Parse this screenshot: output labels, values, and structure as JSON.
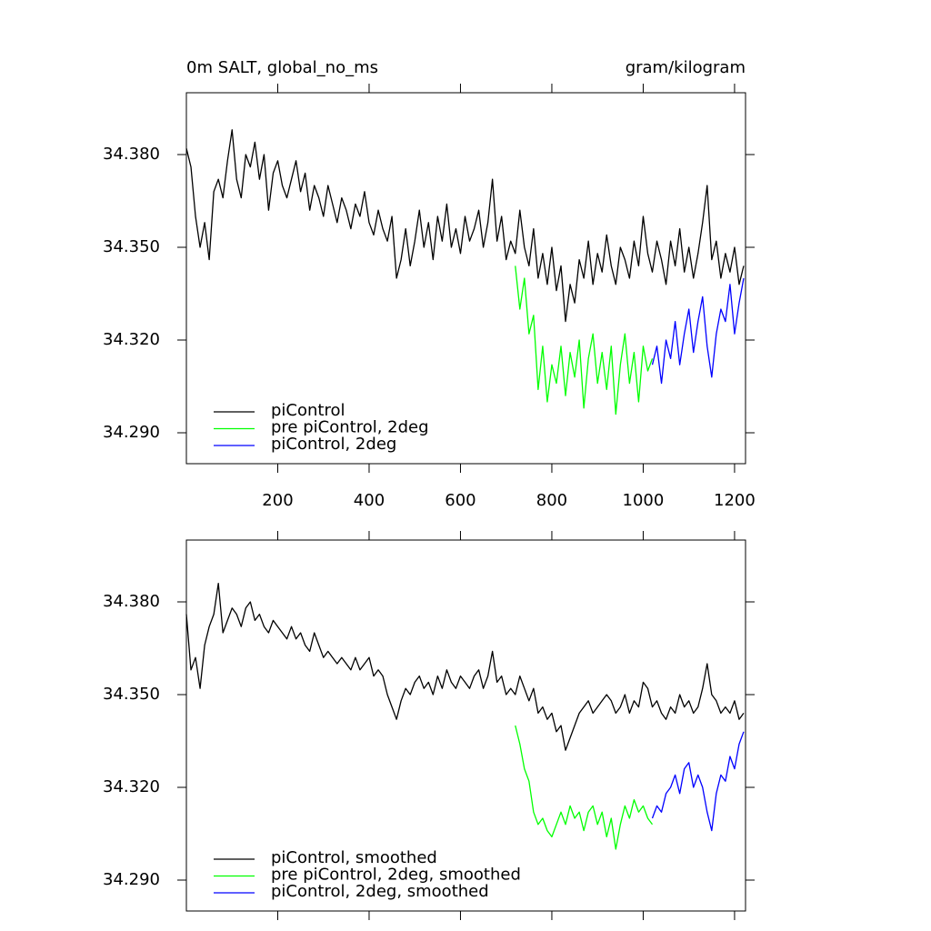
{
  "chart_data": [
    {
      "type": "line",
      "title": "0m SALT, global_no_ms",
      "units": "gram/kilogram",
      "x": [
        0,
        10,
        20,
        30,
        40,
        50,
        60,
        70,
        80,
        90,
        100,
        110,
        120,
        130,
        140,
        150,
        160,
        170,
        180,
        190,
        200,
        210,
        220,
        230,
        240,
        250,
        260,
        270,
        280,
        290,
        300,
        310,
        320,
        330,
        340,
        350,
        360,
        370,
        380,
        390,
        400,
        410,
        420,
        430,
        440,
        450,
        460,
        470,
        480,
        490,
        500,
        510,
        520,
        530,
        540,
        550,
        560,
        570,
        580,
        590,
        600,
        610,
        620,
        630,
        640,
        650,
        660,
        670,
        680,
        690,
        700,
        710,
        720,
        730,
        740,
        750,
        760,
        770,
        780,
        790,
        800,
        810,
        820,
        830,
        840,
        850,
        860,
        870,
        880,
        890,
        900,
        910,
        920,
        930,
        940,
        950,
        960,
        970,
        980,
        990,
        1000,
        1010,
        1020,
        1030,
        1040,
        1050,
        1060,
        1070,
        1080,
        1090,
        1100,
        1110,
        1120,
        1130,
        1140,
        1150,
        1160,
        1170,
        1180,
        1190,
        1200,
        1210,
        1220
      ],
      "series": [
        {
          "name": "piControl",
          "color": "#000000",
          "values": [
            34.382,
            34.376,
            34.36,
            34.35,
            34.358,
            34.346,
            34.368,
            34.372,
            34.366,
            34.378,
            34.388,
            34.372,
            34.366,
            34.38,
            34.376,
            34.384,
            34.372,
            34.38,
            34.362,
            34.374,
            34.378,
            34.37,
            34.366,
            34.372,
            34.378,
            34.368,
            34.374,
            34.362,
            34.37,
            34.366,
            34.36,
            34.37,
            34.364,
            34.358,
            34.366,
            34.362,
            34.356,
            34.364,
            34.36,
            34.368,
            34.358,
            34.354,
            34.362,
            34.356,
            34.352,
            34.36,
            34.34,
            34.346,
            34.356,
            34.344,
            34.352,
            34.362,
            34.35,
            34.358,
            34.346,
            34.36,
            34.352,
            34.364,
            34.35,
            34.356,
            34.348,
            34.36,
            34.352,
            34.356,
            34.362,
            34.35,
            34.358,
            34.372,
            34.352,
            34.36,
            34.346,
            34.352,
            34.348,
            34.362,
            34.35,
            34.344,
            34.356,
            34.34,
            34.348,
            34.338,
            34.35,
            34.336,
            34.344,
            34.326,
            34.338,
            34.332,
            34.346,
            34.34,
            34.352,
            34.338,
            34.348,
            34.342,
            34.354,
            34.344,
            34.338,
            34.35,
            34.346,
            34.34,
            34.352,
            34.344,
            34.36,
            34.348,
            34.342,
            34.352,
            34.346,
            34.338,
            34.352,
            34.344,
            34.356,
            34.342,
            34.35,
            34.34,
            34.348,
            34.358,
            34.37,
            34.346,
            34.352,
            34.34,
            34.348,
            34.342,
            34.35,
            34.338,
            34.344
          ]
        },
        {
          "name": "pre piControl, 2deg",
          "color": "#00ff00",
          "values": [
            null,
            null,
            null,
            null,
            null,
            null,
            null,
            null,
            null,
            null,
            null,
            null,
            null,
            null,
            null,
            null,
            null,
            null,
            null,
            null,
            null,
            null,
            null,
            null,
            null,
            null,
            null,
            null,
            null,
            null,
            null,
            null,
            null,
            null,
            null,
            null,
            null,
            null,
            null,
            null,
            null,
            null,
            null,
            null,
            null,
            null,
            null,
            null,
            null,
            null,
            null,
            null,
            null,
            null,
            null,
            null,
            null,
            null,
            null,
            null,
            null,
            null,
            null,
            null,
            null,
            null,
            null,
            null,
            null,
            null,
            null,
            null,
            34.344,
            34.33,
            34.34,
            34.322,
            34.328,
            34.304,
            34.318,
            34.3,
            34.312,
            34.306,
            34.318,
            34.302,
            34.316,
            34.308,
            34.32,
            34.298,
            34.314,
            34.322,
            34.306,
            34.316,
            34.304,
            34.318,
            34.296,
            34.312,
            34.322,
            34.306,
            34.316,
            34.3,
            34.318,
            34.31,
            34.314,
            null,
            null,
            null,
            null,
            null,
            null,
            null,
            null,
            null,
            null,
            null,
            null,
            null,
            null,
            null,
            null,
            null,
            null,
            null,
            null
          ]
        },
        {
          "name": "piControl, 2deg",
          "color": "#0000ff",
          "values": [
            null,
            null,
            null,
            null,
            null,
            null,
            null,
            null,
            null,
            null,
            null,
            null,
            null,
            null,
            null,
            null,
            null,
            null,
            null,
            null,
            null,
            null,
            null,
            null,
            null,
            null,
            null,
            null,
            null,
            null,
            null,
            null,
            null,
            null,
            null,
            null,
            null,
            null,
            null,
            null,
            null,
            null,
            null,
            null,
            null,
            null,
            null,
            null,
            null,
            null,
            null,
            null,
            null,
            null,
            null,
            null,
            null,
            null,
            null,
            null,
            null,
            null,
            null,
            null,
            null,
            null,
            null,
            null,
            null,
            null,
            null,
            null,
            null,
            null,
            null,
            null,
            null,
            null,
            null,
            null,
            null,
            null,
            null,
            null,
            null,
            null,
            null,
            null,
            null,
            null,
            null,
            null,
            null,
            null,
            null,
            null,
            null,
            null,
            null,
            null,
            null,
            null,
            34.312,
            34.318,
            34.306,
            34.32,
            34.314,
            34.326,
            34.312,
            34.322,
            34.33,
            34.316,
            34.326,
            34.334,
            34.318,
            34.308,
            34.322,
            34.33,
            34.326,
            34.338,
            34.322,
            34.332,
            34.34
          ]
        }
      ],
      "xlim": [
        0,
        1224
      ],
      "ylim": [
        34.28,
        34.4
      ],
      "xticks": [
        200,
        400,
        600,
        800,
        1000,
        1200
      ],
      "xtick_labels": true,
      "yticks": [
        {
          "value": 34.29,
          "label": "34.290"
        },
        {
          "value": 34.32,
          "label": "34.320"
        },
        {
          "value": 34.35,
          "label": "34.350"
        },
        {
          "value": 34.38,
          "label": "34.380"
        }
      ],
      "legend": "bottom-left"
    },
    {
      "type": "line",
      "x": [
        0,
        10,
        20,
        30,
        40,
        50,
        60,
        70,
        80,
        90,
        100,
        110,
        120,
        130,
        140,
        150,
        160,
        170,
        180,
        190,
        200,
        210,
        220,
        230,
        240,
        250,
        260,
        270,
        280,
        290,
        300,
        310,
        320,
        330,
        340,
        350,
        360,
        370,
        380,
        390,
        400,
        410,
        420,
        430,
        440,
        450,
        460,
        470,
        480,
        490,
        500,
        510,
        520,
        530,
        540,
        550,
        560,
        570,
        580,
        590,
        600,
        610,
        620,
        630,
        640,
        650,
        660,
        670,
        680,
        690,
        700,
        710,
        720,
        730,
        740,
        750,
        760,
        770,
        780,
        790,
        800,
        810,
        820,
        830,
        840,
        850,
        860,
        870,
        880,
        890,
        900,
        910,
        920,
        930,
        940,
        950,
        960,
        970,
        980,
        990,
        1000,
        1010,
        1020,
        1030,
        1040,
        1050,
        1060,
        1070,
        1080,
        1090,
        1100,
        1110,
        1120,
        1130,
        1140,
        1150,
        1160,
        1170,
        1180,
        1190,
        1200,
        1210,
        1220
      ],
      "series": [
        {
          "name": "piControl, smoothed",
          "color": "#000000",
          "values": [
            34.376,
            34.358,
            34.362,
            34.352,
            34.366,
            34.372,
            34.376,
            34.386,
            34.37,
            34.374,
            34.378,
            34.376,
            34.372,
            34.378,
            34.38,
            34.374,
            34.376,
            34.372,
            34.37,
            34.374,
            34.372,
            34.37,
            34.368,
            34.372,
            34.368,
            34.37,
            34.366,
            34.364,
            34.37,
            34.366,
            34.362,
            34.364,
            34.362,
            34.36,
            34.362,
            34.36,
            34.358,
            34.362,
            34.358,
            34.36,
            34.362,
            34.356,
            34.358,
            34.356,
            34.35,
            34.346,
            34.342,
            34.348,
            34.352,
            34.35,
            34.354,
            34.356,
            34.352,
            34.354,
            34.35,
            34.356,
            34.352,
            34.358,
            34.354,
            34.352,
            34.356,
            34.354,
            34.352,
            34.356,
            34.358,
            34.352,
            34.356,
            34.364,
            34.354,
            34.356,
            34.35,
            34.352,
            34.35,
            34.356,
            34.352,
            34.348,
            34.352,
            34.344,
            34.346,
            34.342,
            34.344,
            34.338,
            34.34,
            34.332,
            34.336,
            34.34,
            34.344,
            34.346,
            34.348,
            34.344,
            34.346,
            34.348,
            34.35,
            34.348,
            34.344,
            34.346,
            34.35,
            34.344,
            34.348,
            34.346,
            34.354,
            34.352,
            34.346,
            34.348,
            34.344,
            34.342,
            34.346,
            34.344,
            34.35,
            34.346,
            34.348,
            34.344,
            34.346,
            34.352,
            34.36,
            34.35,
            34.348,
            34.344,
            34.346,
            34.344,
            34.348,
            34.342,
            34.344
          ]
        },
        {
          "name": "pre piControl, 2deg, smoothed",
          "color": "#00ff00",
          "values": [
            null,
            null,
            null,
            null,
            null,
            null,
            null,
            null,
            null,
            null,
            null,
            null,
            null,
            null,
            null,
            null,
            null,
            null,
            null,
            null,
            null,
            null,
            null,
            null,
            null,
            null,
            null,
            null,
            null,
            null,
            null,
            null,
            null,
            null,
            null,
            null,
            null,
            null,
            null,
            null,
            null,
            null,
            null,
            null,
            null,
            null,
            null,
            null,
            null,
            null,
            null,
            null,
            null,
            null,
            null,
            null,
            null,
            null,
            null,
            null,
            null,
            null,
            null,
            null,
            null,
            null,
            null,
            null,
            null,
            null,
            null,
            null,
            34.34,
            34.334,
            34.326,
            34.322,
            34.312,
            34.308,
            34.31,
            34.306,
            34.304,
            34.308,
            34.312,
            34.308,
            34.314,
            34.31,
            34.312,
            34.306,
            34.312,
            34.314,
            34.308,
            34.312,
            34.304,
            34.31,
            34.3,
            34.308,
            34.314,
            34.31,
            34.316,
            34.312,
            34.314,
            34.31,
            34.308,
            null,
            null,
            null,
            null,
            null,
            null,
            null,
            null,
            null,
            null,
            null,
            null,
            null,
            null,
            null,
            null,
            null,
            null,
            null,
            null
          ]
        },
        {
          "name": "piControl, 2deg, smoothed",
          "color": "#0000ff",
          "values": [
            null,
            null,
            null,
            null,
            null,
            null,
            null,
            null,
            null,
            null,
            null,
            null,
            null,
            null,
            null,
            null,
            null,
            null,
            null,
            null,
            null,
            null,
            null,
            null,
            null,
            null,
            null,
            null,
            null,
            null,
            null,
            null,
            null,
            null,
            null,
            null,
            null,
            null,
            null,
            null,
            null,
            null,
            null,
            null,
            null,
            null,
            null,
            null,
            null,
            null,
            null,
            null,
            null,
            null,
            null,
            null,
            null,
            null,
            null,
            null,
            null,
            null,
            null,
            null,
            null,
            null,
            null,
            null,
            null,
            null,
            null,
            null,
            null,
            null,
            null,
            null,
            null,
            null,
            null,
            null,
            null,
            null,
            null,
            null,
            null,
            null,
            null,
            null,
            null,
            null,
            null,
            null,
            null,
            null,
            null,
            null,
            null,
            null,
            null,
            null,
            null,
            null,
            34.31,
            34.314,
            34.312,
            34.318,
            34.32,
            34.324,
            34.318,
            34.326,
            34.328,
            34.32,
            34.324,
            34.32,
            34.312,
            34.306,
            34.318,
            34.324,
            34.322,
            34.33,
            34.326,
            34.334,
            34.338
          ]
        }
      ],
      "xlim": [
        0,
        1224
      ],
      "ylim": [
        34.28,
        34.4
      ],
      "xticks": [
        200,
        400,
        600,
        800,
        1000,
        1200
      ],
      "xtick_labels": false,
      "yticks": [
        {
          "value": 34.29,
          "label": "34.290"
        },
        {
          "value": 34.32,
          "label": "34.320"
        },
        {
          "value": 34.35,
          "label": "34.350"
        },
        {
          "value": 34.38,
          "label": "34.380"
        }
      ],
      "legend": "bottom-left"
    }
  ]
}
